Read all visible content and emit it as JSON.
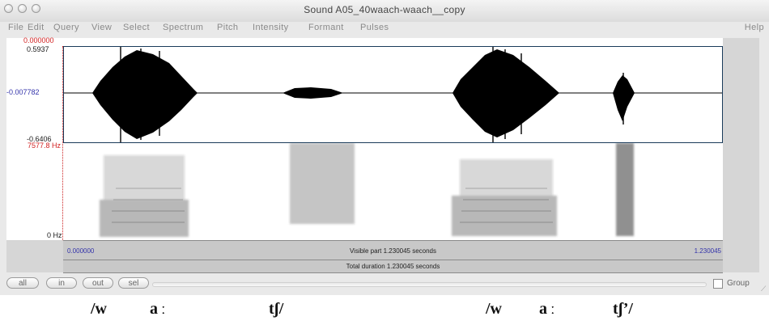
{
  "window": {
    "title": "Sound A05_40waach-waach__copy"
  },
  "menu": {
    "items": [
      "File",
      "Edit",
      "Query",
      "View",
      "Select",
      "Spectrum",
      "Pitch",
      "Intensity",
      "Formant",
      "Pulses"
    ],
    "help": "Help"
  },
  "waveform": {
    "cursor_time": "0.000000",
    "max_label": "0.5937",
    "zero_label": "-0.007782",
    "min_label": "-0.6406"
  },
  "spectrogram": {
    "top_label": "7577.8 Hz",
    "bottom_label": "0 Hz"
  },
  "timebar": {
    "start": "0.000000",
    "visible": "Visible part 1.230045 seconds",
    "end": "1.230045",
    "total": "Total duration 1.230045 seconds"
  },
  "zoom": {
    "all": "all",
    "in": "in",
    "out": "out",
    "sel": "sel",
    "group": "Group"
  },
  "transcription": {
    "segments": [
      "/w",
      "a",
      "ː",
      "tʃ/",
      "/w",
      "a",
      "ː",
      "tʃ’/"
    ]
  },
  "colors": {
    "window_bg": "#e9e9e9",
    "cursor_red": "#d12020",
    "label_blue": "#3333aa",
    "wave_border": "#1a3b5a"
  }
}
